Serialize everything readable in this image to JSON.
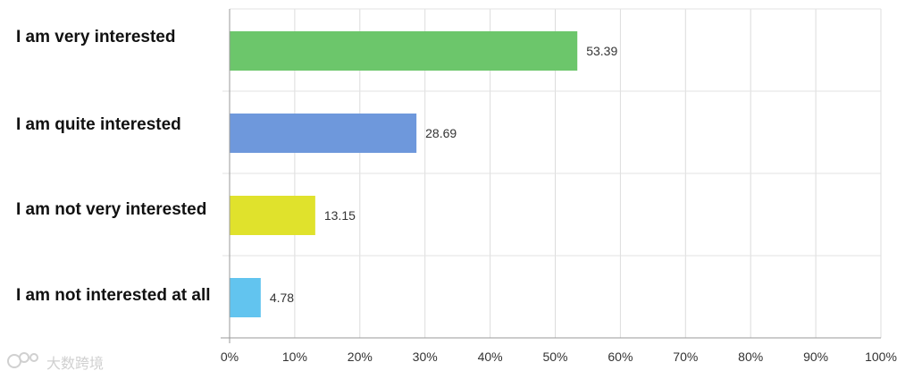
{
  "chart_data": {
    "type": "bar",
    "orientation": "horizontal",
    "categories": [
      "I am very interested",
      "I am quite interested",
      "I am not very interested",
      "I am not interested at all"
    ],
    "values": [
      53.39,
      28.69,
      13.15,
      4.78
    ],
    "data_labels": [
      "53.39",
      "28.69",
      "13.15",
      "4.78"
    ],
    "colors": [
      "#6cc66b",
      "#6e98dc",
      "#e0e22c",
      "#62c4ef"
    ],
    "xlim": [
      0,
      100
    ],
    "x_ticks": [
      "0%",
      "10%",
      "20%",
      "30%",
      "40%",
      "50%",
      "60%",
      "70%",
      "80%",
      "90%",
      "100%"
    ],
    "grid": true,
    "title": "",
    "xlabel": "",
    "ylabel": ""
  },
  "watermark": {
    "icon": "brand-logo-icon",
    "text": "大数跨境"
  }
}
